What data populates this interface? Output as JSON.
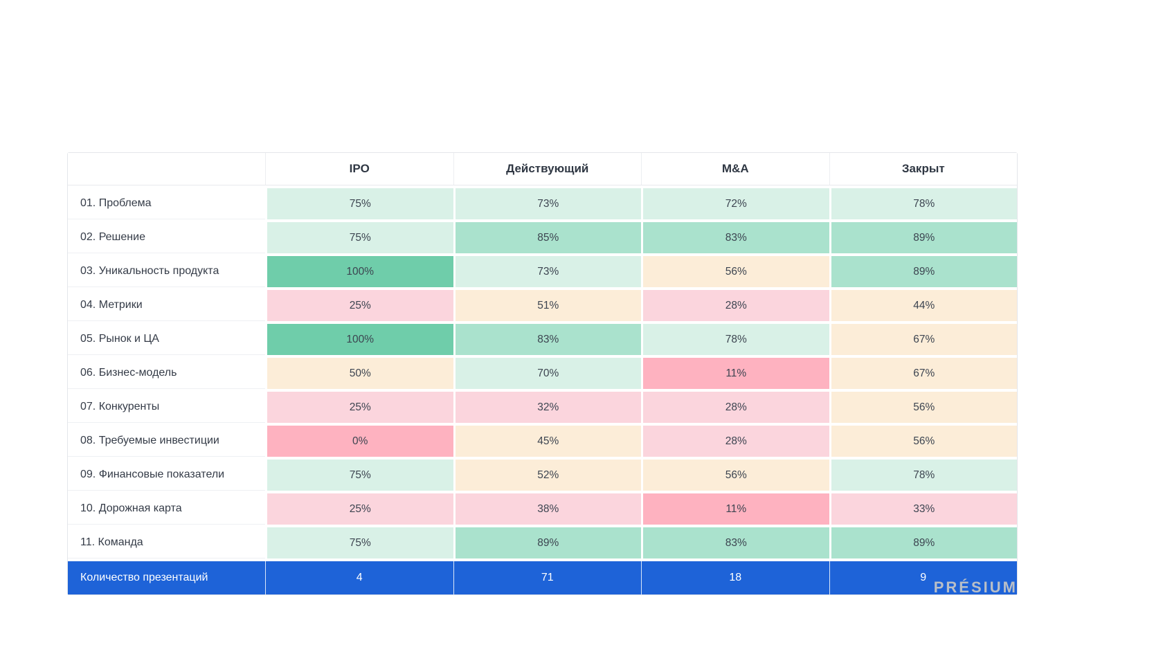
{
  "table": {
    "columns": [
      "",
      "IPO",
      "Действующий",
      "M&A",
      "Закрыт"
    ],
    "rows": [
      {
        "label": "01. Проблема",
        "cells": [
          {
            "v": "75%",
            "level": "green-light"
          },
          {
            "v": "73%",
            "level": "green-light"
          },
          {
            "v": "72%",
            "level": "green-light"
          },
          {
            "v": "78%",
            "level": "green-light"
          }
        ]
      },
      {
        "label": "02. Решение",
        "cells": [
          {
            "v": "75%",
            "level": "green-light"
          },
          {
            "v": "85%",
            "level": "green-mid"
          },
          {
            "v": "83%",
            "level": "green-mid"
          },
          {
            "v": "89%",
            "level": "green-mid"
          }
        ]
      },
      {
        "label": "03. Уникальность продукта",
        "cells": [
          {
            "v": "100%",
            "level": "green-strong"
          },
          {
            "v": "73%",
            "level": "green-light"
          },
          {
            "v": "56%",
            "level": "cream"
          },
          {
            "v": "89%",
            "level": "green-mid"
          }
        ]
      },
      {
        "label": "04. Метрики",
        "cells": [
          {
            "v": "25%",
            "level": "pink-light"
          },
          {
            "v": "51%",
            "level": "cream"
          },
          {
            "v": "28%",
            "level": "pink-light"
          },
          {
            "v": "44%",
            "level": "cream"
          }
        ]
      },
      {
        "label": "05. Рынок и ЦА",
        "cells": [
          {
            "v": "100%",
            "level": "green-strong"
          },
          {
            "v": "83%",
            "level": "green-mid"
          },
          {
            "v": "78%",
            "level": "green-light"
          },
          {
            "v": "67%",
            "level": "cream"
          }
        ]
      },
      {
        "label": "06. Бизнес-модель",
        "cells": [
          {
            "v": "50%",
            "level": "cream"
          },
          {
            "v": "70%",
            "level": "green-light"
          },
          {
            "v": "11%",
            "level": "pink-strong"
          },
          {
            "v": "67%",
            "level": "cream"
          }
        ]
      },
      {
        "label": "07. Конкуренты",
        "cells": [
          {
            "v": "25%",
            "level": "pink-light"
          },
          {
            "v": "32%",
            "level": "pink-light"
          },
          {
            "v": "28%",
            "level": "pink-light"
          },
          {
            "v": "56%",
            "level": "cream"
          }
        ]
      },
      {
        "label": "08. Требуемые инвестиции",
        "cells": [
          {
            "v": "0%",
            "level": "pink-strong"
          },
          {
            "v": "45%",
            "level": "cream"
          },
          {
            "v": "28%",
            "level": "pink-light"
          },
          {
            "v": "56%",
            "level": "cream"
          }
        ]
      },
      {
        "label": "09. Финансовые показатели",
        "cells": [
          {
            "v": "75%",
            "level": "green-light"
          },
          {
            "v": "52%",
            "level": "cream"
          },
          {
            "v": "56%",
            "level": "cream"
          },
          {
            "v": "78%",
            "level": "green-light"
          }
        ]
      },
      {
        "label": "10. Дорожная карта",
        "cells": [
          {
            "v": "25%",
            "level": "pink-light"
          },
          {
            "v": "38%",
            "level": "pink-light"
          },
          {
            "v": "11%",
            "level": "pink-strong"
          },
          {
            "v": "33%",
            "level": "pink-light"
          }
        ]
      },
      {
        "label": "11. Команда",
        "cells": [
          {
            "v": "75%",
            "level": "green-light"
          },
          {
            "v": "89%",
            "level": "green-mid"
          },
          {
            "v": "83%",
            "level": "green-mid"
          },
          {
            "v": "89%",
            "level": "green-mid"
          }
        ]
      }
    ],
    "footer": {
      "label": "Количество презентаций",
      "values": [
        "4",
        "71",
        "18",
        "9"
      ]
    }
  },
  "colors": {
    "green_strong": "#6fcdaa",
    "green_mid": "#aae2cd",
    "green_light": "#d9f1e7",
    "cream": "#fcedd8",
    "pink_light": "#fbd5dd",
    "pink_strong": "#feb2c0",
    "footer_blue": "#1e63d8"
  },
  "logo": {
    "text": "PRÉSIUM"
  },
  "chart_data": {
    "type": "heatmap",
    "title": "",
    "columns": [
      "IPO",
      "Действующий",
      "M&A",
      "Закрыт"
    ],
    "rows": [
      "01. Проблема",
      "02. Решение",
      "03. Уникальность продукта",
      "04. Метрики",
      "05. Рынок и ЦА",
      "06. Бизнес-модель",
      "07. Конкуренты",
      "08. Требуемые инвестиции",
      "09. Финансовые показатели",
      "10. Дорожная карта",
      "11. Команда"
    ],
    "values_percent": [
      [
        75,
        73,
        72,
        78
      ],
      [
        75,
        85,
        83,
        89
      ],
      [
        100,
        73,
        56,
        89
      ],
      [
        25,
        51,
        28,
        44
      ],
      [
        100,
        83,
        78,
        67
      ],
      [
        50,
        70,
        11,
        67
      ],
      [
        25,
        32,
        28,
        56
      ],
      [
        0,
        45,
        28,
        56
      ],
      [
        75,
        52,
        56,
        78
      ],
      [
        25,
        38,
        11,
        33
      ],
      [
        75,
        89,
        83,
        89
      ]
    ],
    "footer_row": {
      "label": "Количество презентаций",
      "values": [
        4,
        71,
        18,
        9
      ]
    },
    "color_scale": "red-low to green-high"
  }
}
